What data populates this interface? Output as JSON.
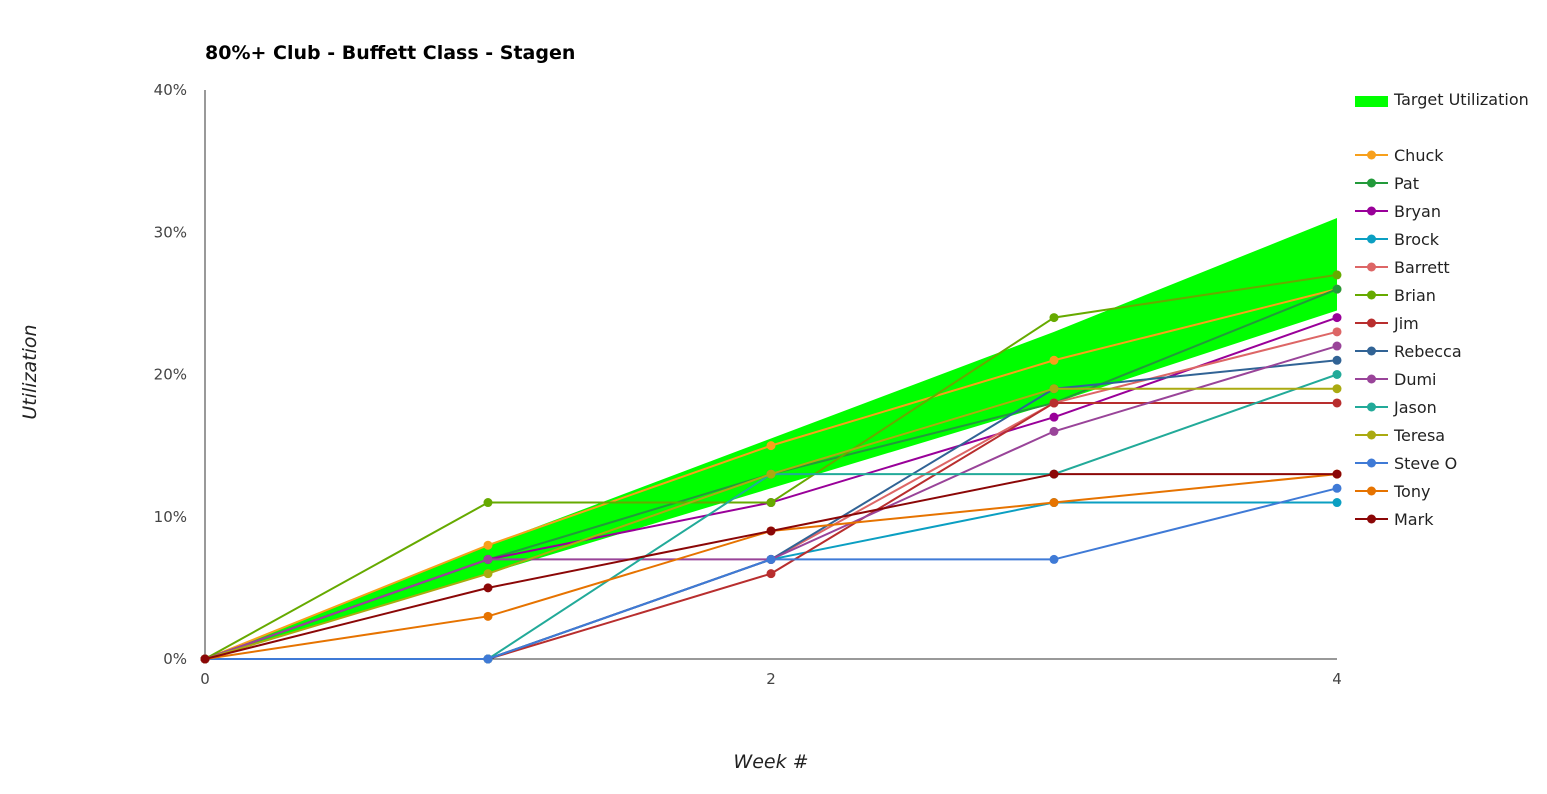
{
  "chart_data": {
    "type": "line",
    "title": "80%+ Club - Buffett Class - Stagen",
    "xlabel": "Week #",
    "ylabel": "Utilization",
    "x": [
      0,
      1,
      2,
      3,
      4
    ],
    "x_tick_labels": [
      "0",
      "2",
      "4"
    ],
    "x_ticks": [
      0,
      2,
      4
    ],
    "xlim": [
      0,
      4
    ],
    "y_ticks": [
      0,
      10,
      20,
      30,
      40
    ],
    "y_tick_labels": [
      "0%",
      "10%",
      "20%",
      "30%",
      "40%"
    ],
    "ylim": [
      0,
      40
    ],
    "y_unit": "%",
    "grid": false,
    "legend_position": "right",
    "target_band": {
      "name": "Target Utilization",
      "color": "#00ff00",
      "lower": [
        0,
        6,
        12,
        18,
        24.5
      ],
      "upper": [
        0,
        8,
        15.5,
        23,
        31
      ]
    },
    "series": [
      {
        "name": "Chuck",
        "color": "#f7a01c",
        "values": [
          0,
          8,
          15,
          21,
          26
        ]
      },
      {
        "name": "Pat",
        "color": "#229a3a",
        "values": [
          0,
          7,
          13,
          18,
          26
        ]
      },
      {
        "name": "Bryan",
        "color": "#990099",
        "values": [
          0,
          7,
          11,
          17,
          24
        ]
      },
      {
        "name": "Brock",
        "color": "#0b9fc2",
        "values": [
          0,
          0,
          7,
          11,
          11
        ]
      },
      {
        "name": "Barrett",
        "color": "#dd6666",
        "values": [
          0,
          0,
          7,
          18,
          23
        ]
      },
      {
        "name": "Brian",
        "color": "#66aa00",
        "values": [
          0,
          11,
          11,
          24,
          27
        ]
      },
      {
        "name": "Jim",
        "color": "#b82e2e",
        "values": [
          0,
          0,
          6,
          18,
          18
        ]
      },
      {
        "name": "Rebecca",
        "color": "#316395",
        "values": [
          0,
          0,
          7,
          19,
          21
        ]
      },
      {
        "name": "Dumi",
        "color": "#994499",
        "values": [
          0,
          7,
          7,
          16,
          22
        ]
      },
      {
        "name": "Jason",
        "color": "#22aa99",
        "values": [
          0,
          0,
          13,
          13,
          20
        ]
      },
      {
        "name": "Teresa",
        "color": "#aaaa11",
        "values": [
          0,
          6,
          13,
          19,
          19
        ]
      },
      {
        "name": "Steve O",
        "color": "#3f7ad6",
        "values": [
          0,
          0,
          7,
          7,
          12
        ]
      },
      {
        "name": "Tony",
        "color": "#e67300",
        "values": [
          0,
          3,
          9,
          11,
          13
        ]
      },
      {
        "name": "Mark",
        "color": "#8b0707",
        "values": [
          0,
          5,
          9,
          13,
          13
        ]
      }
    ]
  }
}
